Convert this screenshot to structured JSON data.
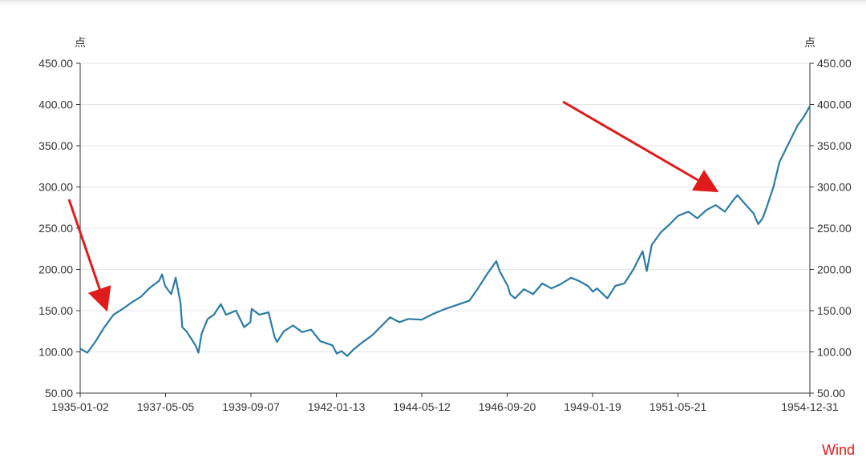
{
  "chart_data": {
    "type": "line",
    "title": "",
    "xlabel": "",
    "ylabel_left": "点",
    "ylabel_right": "点",
    "x_range": [
      "1935-01-02",
      "1954-12-31"
    ],
    "x_tick_labels": [
      "1935-01-02",
      "1937-05-05",
      "1939-09-07",
      "1942-01-13",
      "1944-05-12",
      "1946-09-20",
      "1949-01-19",
      "1951-05-21",
      "1954-12-31"
    ],
    "ylim": [
      50,
      450
    ],
    "y_ticks": [
      50,
      100,
      150,
      200,
      250,
      300,
      350,
      400,
      450
    ],
    "y_tick_labels": [
      "50.00",
      "100.00",
      "150.00",
      "200.00",
      "250.00",
      "300.00",
      "350.00",
      "400.00",
      "450.00"
    ],
    "grid": true,
    "line_color": "#2a7ba4",
    "series": [
      {
        "x": [
          "1935-01-02",
          "1935-03-15",
          "1935-06-01",
          "1935-09-01",
          "1935-12-01",
          "1936-03-01",
          "1936-06-01",
          "1936-09-01",
          "1936-12-01",
          "1937-03-01",
          "1937-03-31",
          "1937-05-01",
          "1937-07-01",
          "1937-08-15",
          "1937-10-01",
          "1937-10-20",
          "1937-12-01",
          "1938-03-01",
          "1938-03-31",
          "1938-05-01",
          "1938-07-01",
          "1938-09-01",
          "1938-11-10",
          "1939-01-01",
          "1939-04-10",
          "1939-07-01",
          "1939-09-01",
          "1939-09-15",
          "1939-12-01",
          "1940-03-01",
          "1940-05-01",
          "1940-05-25",
          "1940-08-01",
          "1940-11-01",
          "1941-02-01",
          "1941-05-01",
          "1941-08-01",
          "1941-12-01",
          "1942-01-13",
          "1942-03-01",
          "1942-04-28",
          "1942-07-01",
          "1942-10-01",
          "1943-01-01",
          "1943-04-01",
          "1943-07-01",
          "1943-10-01",
          "1944-01-01",
          "1944-05-12",
          "1944-09-01",
          "1945-01-01",
          "1945-05-01",
          "1945-09-01",
          "1945-12-01",
          "1946-03-01",
          "1946-05-29",
          "1946-07-01",
          "1946-08-15",
          "1946-09-20",
          "1946-10-15",
          "1946-12-01",
          "1947-03-01",
          "1947-06-01",
          "1947-09-01",
          "1947-12-01",
          "1948-03-01",
          "1948-06-15",
          "1948-09-01",
          "1948-12-01",
          "1949-01-19",
          "1949-03-01",
          "1949-06-13",
          "1949-09-01",
          "1949-12-01",
          "1950-03-01",
          "1950-06-01",
          "1950-07-13",
          "1950-09-01",
          "1950-12-01",
          "1951-03-01",
          "1951-05-21",
          "1951-09-01",
          "1951-12-01",
          "1952-03-01",
          "1952-06-01",
          "1952-09-01",
          "1952-12-01",
          "1953-01-05",
          "1953-04-01",
          "1953-06-15",
          "1953-08-01",
          "1953-09-14",
          "1953-11-01",
          "1954-01-01",
          "1954-03-01",
          "1954-05-01",
          "1954-07-01",
          "1954-09-01",
          "1954-11-01",
          "1954-12-31"
        ],
        "values": [
          104,
          99,
          112,
          130,
          145,
          152,
          160,
          167,
          178,
          186,
          194,
          180,
          170,
          190,
          160,
          130,
          125,
          108,
          99,
          122,
          140,
          145,
          158,
          145,
          150,
          130,
          136,
          152,
          145,
          148,
          118,
          112,
          125,
          132,
          124,
          127,
          113,
          108,
          98,
          101,
          95,
          103,
          112,
          120,
          131,
          142,
          136,
          140,
          139,
          146,
          152,
          157,
          162,
          178,
          195,
          210,
          198,
          188,
          180,
          170,
          165,
          176,
          170,
          183,
          177,
          182,
          190,
          186,
          180,
          173,
          177,
          165,
          180,
          183,
          200,
          222,
          198,
          230,
          245,
          255,
          265,
          270,
          262,
          272,
          278,
          270,
          285,
          290,
          278,
          268,
          255,
          262,
          278,
          300,
          330,
          345,
          360,
          375,
          385,
          398
        ]
      }
    ]
  },
  "watermark": "Wind"
}
